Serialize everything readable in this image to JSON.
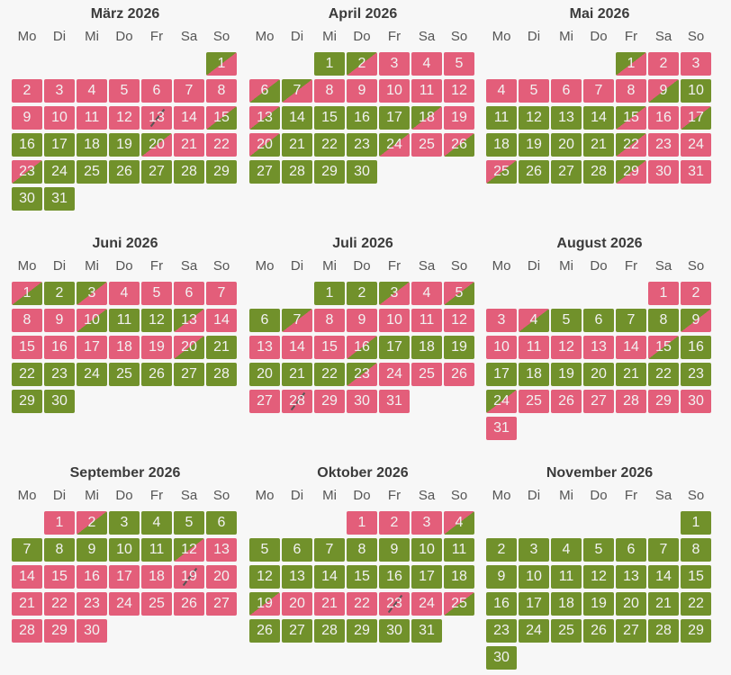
{
  "weekdays": [
    "Mo",
    "Di",
    "Mi",
    "Do",
    "Fr",
    "Sa",
    "So"
  ],
  "colors": {
    "available": "#71912b",
    "booked": "#e35e7a"
  },
  "legend_codes": {
    "g": "available",
    "r": "booked",
    "gr": "arrival (available → booked)",
    "rg": "departure (booked → available)",
    "x": "departure and arrival same day"
  },
  "months": [
    {
      "title": "März 2026",
      "first_weekday": 6,
      "days": 31,
      "states": "gr r*11 x r rg g*4 gr r r rg g*8"
    },
    {
      "title": "April 2026",
      "first_weekday": 2,
      "days": 30,
      "states": "g gr r*3 rg gr r*5 rg g*4 gr r rg g*3 gr r rg g*4"
    },
    {
      "title": "Mai 2026",
      "first_weekday": 4,
      "days": 31,
      "states": "gr r*7 rg g*5 gr r rg g*4 gr r r rg g*3 gr r r"
    },
    {
      "title": "Juni 2026",
      "first_weekday": 0,
      "days": 30,
      "states": "rg g gr r*6 rg g g gr r*6 rg g*10"
    },
    {
      "title": "Juli 2026",
      "first_weekday": 2,
      "days": 31,
      "states": "g g gr r rg g gr r*8 rg g*6 gr r*4 x r*3"
    },
    {
      "title": "August 2026",
      "first_weekday": 5,
      "days": 31,
      "states": "r*3 rg g*4 gr r*5 rg g*8 gr r*7"
    },
    {
      "title": "September 2026",
      "first_weekday": 1,
      "days": 30,
      "states": "r rg g*9 gr r*6 x r*11"
    },
    {
      "title": "Oktober 2026",
      "first_weekday": 3,
      "days": 31,
      "states": "r*3 rg g*14 gr r*3 x r rg g*6"
    },
    {
      "title": "November 2026",
      "first_weekday": 6,
      "days": 30,
      "states": "g*30"
    }
  ]
}
